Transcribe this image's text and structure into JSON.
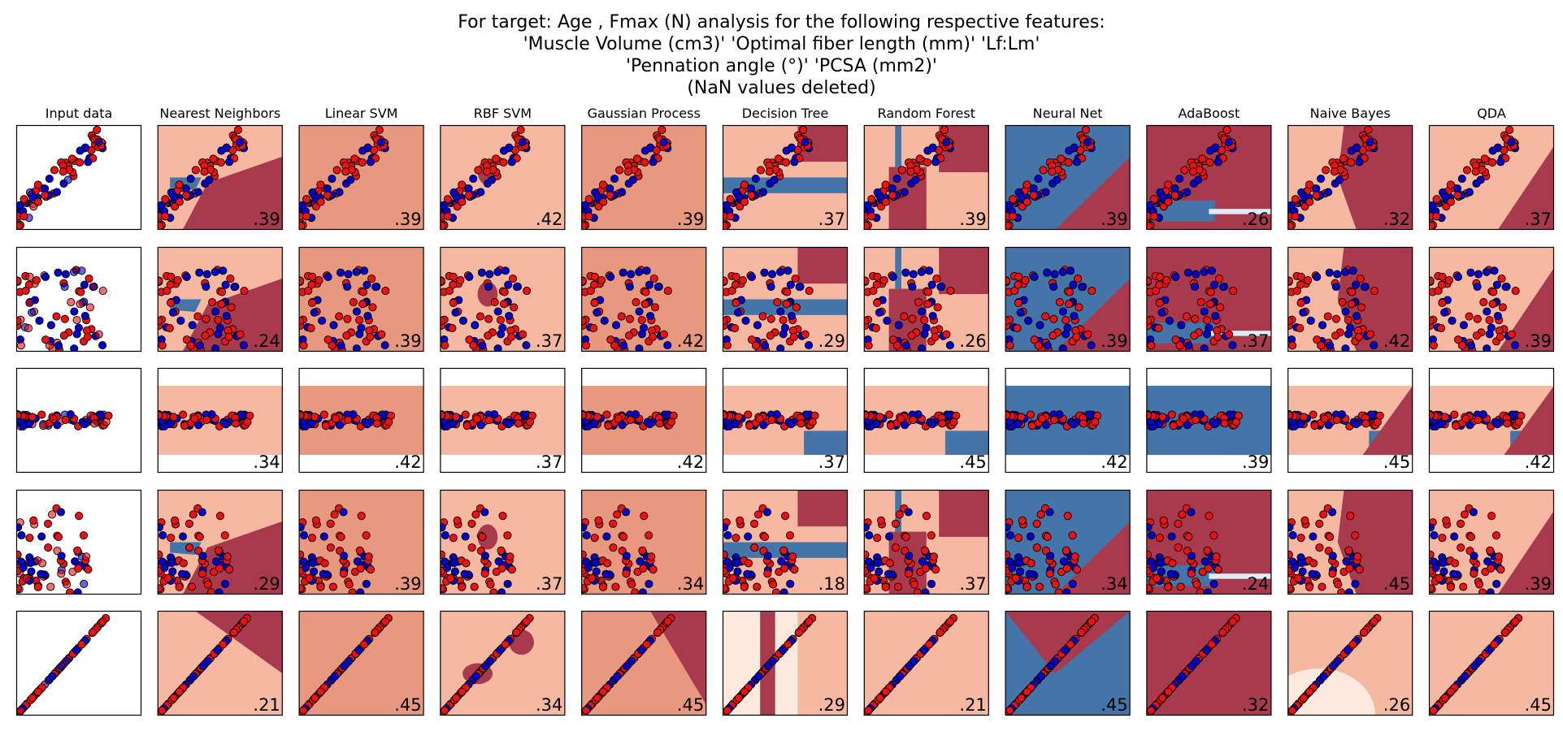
{
  "title_lines": [
    "For target: Age , Fmax (N) analysis for the following respective features:",
    "'Muscle Volume (cm3)' 'Optimal fiber length (mm)' 'Lf:Lm'",
    "'Pennation angle (°)' 'PCSA (mm2)'",
    "(NaN values deleted)"
  ],
  "chart_data": {
    "type": "scatter",
    "columns": [
      "Input data",
      "Nearest Neighbors",
      "Linear SVM",
      "RBF SVM",
      "Gaussian Process",
      "Decision Tree",
      "Random Forest",
      "Neural Net",
      "AdaBoost",
      "Naive Bayes",
      "QDA"
    ],
    "rows": 5,
    "scores": [
      [
        "",
        ".39",
        ".39",
        ".42",
        ".39",
        ".37",
        ".39",
        ".39",
        ".26",
        ".32",
        ".37"
      ],
      [
        "",
        ".24",
        ".39",
        ".37",
        ".42",
        ".29",
        ".26",
        ".39",
        ".37",
        ".42",
        ".39"
      ],
      [
        "",
        ".34",
        ".42",
        ".37",
        ".42",
        ".37",
        ".45",
        ".42",
        ".39",
        ".45",
        ".42"
      ],
      [
        "",
        ".29",
        ".39",
        ".37",
        ".34",
        ".18",
        ".37",
        ".34",
        ".24",
        ".45",
        ".39"
      ],
      [
        "",
        ".21",
        ".45",
        ".34",
        ".45",
        ".29",
        ".21",
        ".45",
        ".32",
        ".26",
        ".45"
      ]
    ],
    "colors": {
      "class_0_point": "#0000cc",
      "class_1_point": "#ee1111",
      "region_dark_red": "#a93a4e",
      "region_mid_red": "#e8987f",
      "region_light_red": "#f6b8a0",
      "region_blue": "#4574a8",
      "region_pale": "#fde9de",
      "region_pale_blue": "#deedf3"
    },
    "axes": "off",
    "legend": "none"
  }
}
